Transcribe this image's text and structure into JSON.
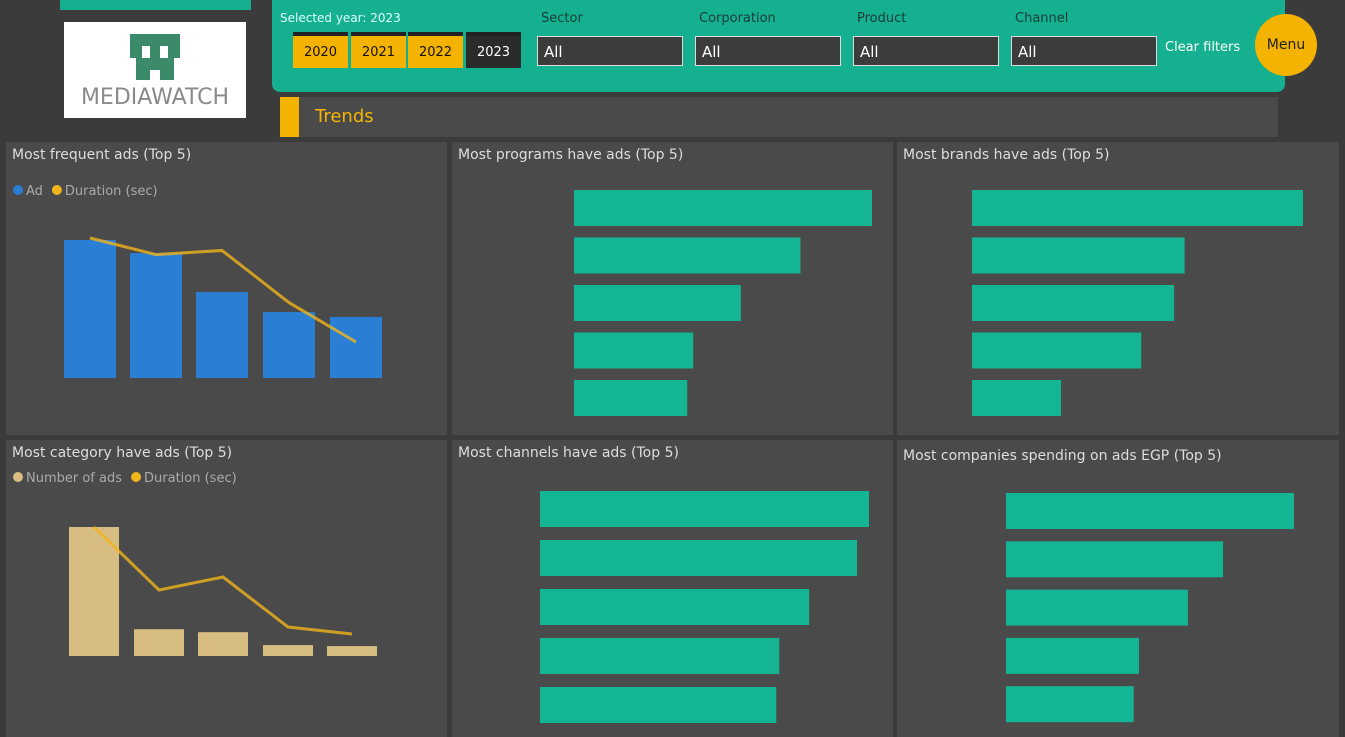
{
  "logo": "MEDIAWATCH",
  "filters": {
    "selected_year": "Selected year: 2023",
    "years": [
      "2020",
      "2021",
      "2022",
      "2023"
    ],
    "dropdowns": [
      {
        "label": "Sector",
        "value": "All"
      },
      {
        "label": "Corporation",
        "value": "All"
      },
      {
        "label": "Product",
        "value": "All"
      },
      {
        "label": "Channel",
        "value": "All"
      }
    ],
    "clear": "Clear filters",
    "menu": "Menu"
  },
  "section": "Trends",
  "panels": [
    {
      "type": "combo",
      "title": "Most frequent ads (Top 5)",
      "series": [
        {
          "name": "Ad",
          "color": "#2a7fd4",
          "values": [
            4000,
            3620,
            2490,
            1910,
            1770
          ]
        },
        {
          "name": "Duration (sec)",
          "color": "#f0b41c",
          "values": [
            607,
            535,
            553,
            327,
            156
          ]
        }
      ]
    },
    {
      "type": "hbar",
      "title": "Most programs have ads (Top 5)",
      "color": "#14b592",
      "values": [
        10000,
        7600,
        5600,
        4000,
        3800
      ]
    },
    {
      "type": "hbar",
      "title": "Most brands have ads (Top 5)",
      "color": "#14b592",
      "values": [
        9526,
        6119,
        5818,
        4871,
        2563
      ]
    },
    {
      "type": "combo",
      "title": "Most category have ads (Top 5)",
      "series": [
        {
          "name": "Number of ads",
          "color": "#d8bd82",
          "values": [
            26000,
            5400,
            4800,
            2200,
            2000
          ]
        },
        {
          "name": "Duration (sec)",
          "color": "#f0b41c",
          "values": [
            1290,
            660,
            790,
            290,
            220
          ]
        }
      ]
    },
    {
      "type": "hbar",
      "title": "Most channels have ads (Top 5)",
      "color": "#14b592",
      "values": [
        5500,
        5300,
        4500,
        4000,
        3950
      ]
    },
    {
      "type": "hbar",
      "title": "Most companies spending on ads EGP (Top 5)",
      "color": "#14b592",
      "values": [
        5414,
        4080,
        3420,
        2500,
        2400
      ]
    }
  ]
}
